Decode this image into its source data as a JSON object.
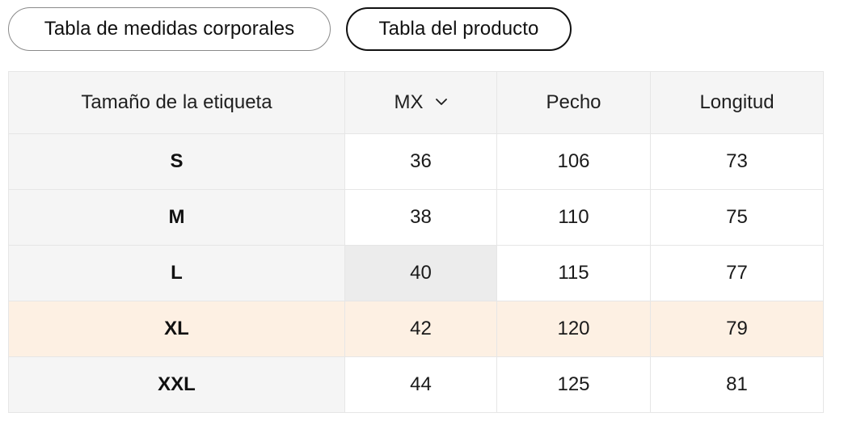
{
  "tabs": {
    "body_measurements": "Tabla de medidas corporales",
    "product_table": "Tabla del producto"
  },
  "table": {
    "headers": {
      "label": "Tamaño de la etiqueta",
      "unit": "MX",
      "chest": "Pecho",
      "length": "Longitud"
    },
    "rows": [
      {
        "size": "S",
        "mx": "36",
        "chest": "106",
        "length": "73"
      },
      {
        "size": "M",
        "mx": "38",
        "chest": "110",
        "length": "75"
      },
      {
        "size": "L",
        "mx": "40",
        "chest": "115",
        "length": "77"
      },
      {
        "size": "XL",
        "mx": "42",
        "chest": "120",
        "length": "79"
      },
      {
        "size": "XXL",
        "mx": "44",
        "chest": "125",
        "length": "81"
      }
    ],
    "selected_size": "XL"
  },
  "colors": {
    "header_bg": "#f5f5f5",
    "selected_row_bg": "#fdf0e3",
    "hover_cell_bg": "#ececec",
    "active_tab_border": "#111111"
  }
}
